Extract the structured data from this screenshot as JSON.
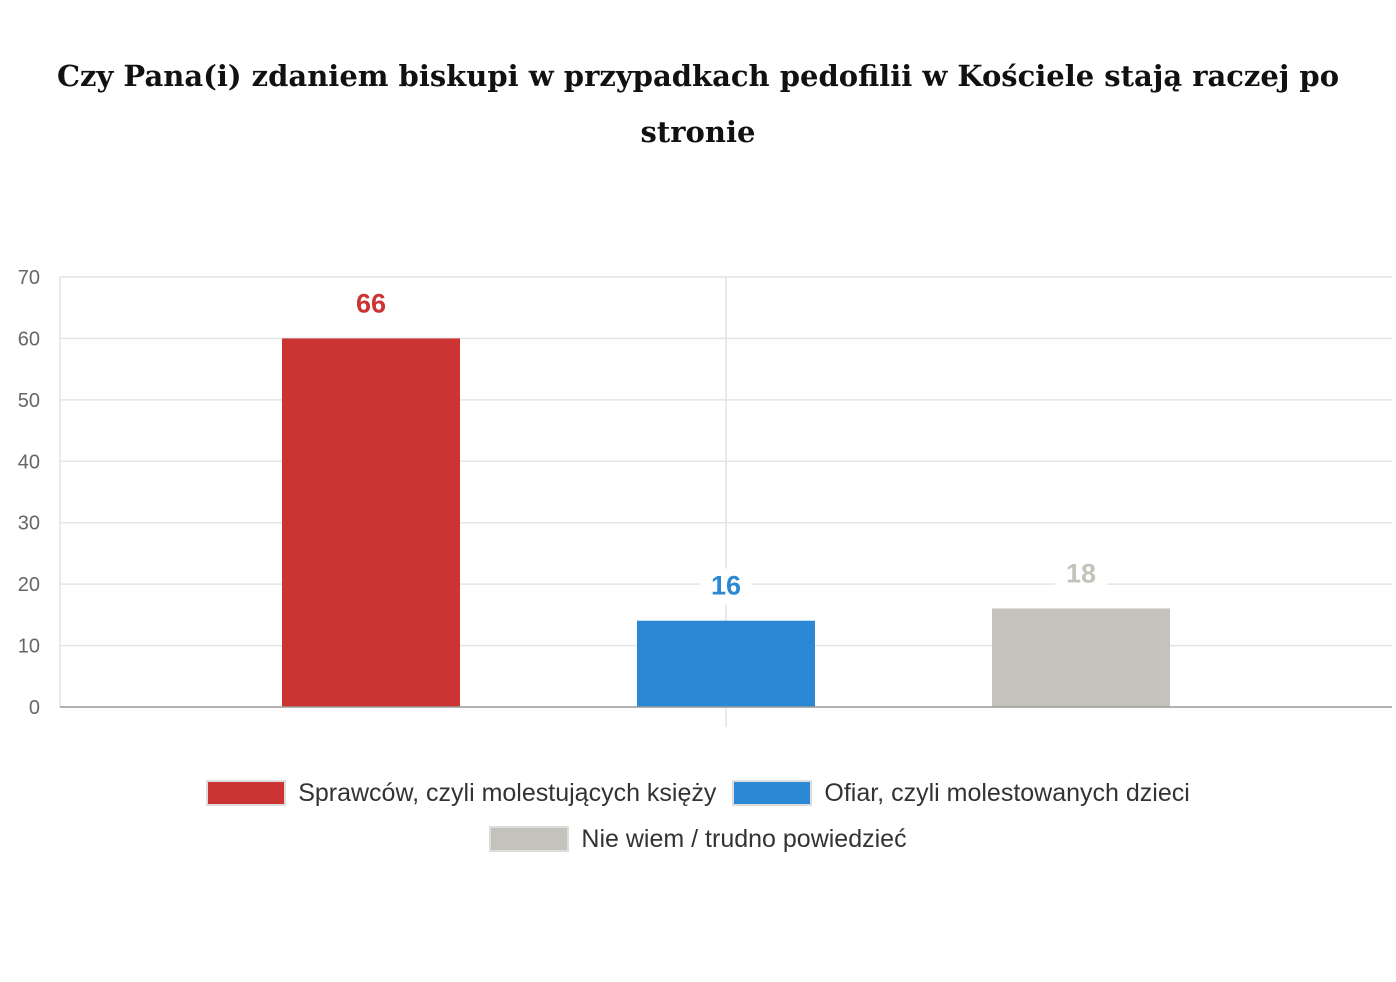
{
  "chart_data": {
    "type": "bar",
    "title": "Czy Pana(i) zdaniem biskupi w przypadkach pedofilii w Kościele stają raczej po stronie",
    "xlabel": "",
    "ylabel": "",
    "ylim": [
      0,
      70
    ],
    "yticks": [
      0,
      10,
      20,
      30,
      40,
      50,
      60,
      70
    ],
    "grid": true,
    "legend_position": "bottom",
    "series": [
      {
        "name": "Sprawców, czyli molestujących księży",
        "value": 66,
        "label": "66",
        "color": "#cc3333"
      },
      {
        "name": "Ofiar, czyli molestowanych dzieci",
        "value": 16,
        "label": "16",
        "color": "#2b88d4"
      },
      {
        "name": "Nie wiem / trudno powiedzieć",
        "value": 18,
        "label": "18",
        "color": "#c4c3bb"
      }
    ]
  }
}
